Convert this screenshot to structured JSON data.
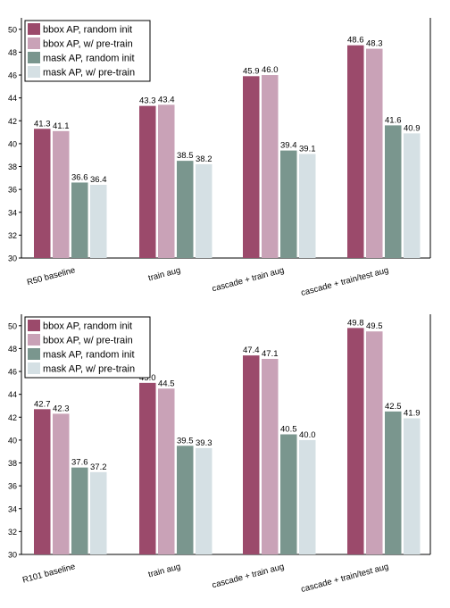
{
  "colors": {
    "bbox_random": "#9b4a6b",
    "bbox_pretrain": "#c9a2b7",
    "mask_random": "#7a968e",
    "mask_pretrain": "#d5e0e4"
  },
  "chart_data": [
    {
      "type": "bar",
      "categories": [
        "R50 baseline",
        "train aug",
        "cascade + train aug",
        "cascade + train/test aug"
      ],
      "ylim": [
        30,
        51
      ],
      "yticks": [
        30,
        32,
        34,
        36,
        38,
        40,
        42,
        44,
        46,
        48,
        50
      ],
      "legend_position": "top-left",
      "grid": false,
      "series": [
        {
          "name": "bbox AP, random init",
          "values": [
            41.3,
            43.3,
            45.9,
            48.6
          ]
        },
        {
          "name": "bbox AP, w/ pre-train",
          "values": [
            41.1,
            43.4,
            46.0,
            48.3
          ]
        },
        {
          "name": "mask AP, random init",
          "values": [
            36.6,
            38.5,
            39.4,
            41.6
          ]
        },
        {
          "name": "mask AP, w/ pre-train",
          "values": [
            36.4,
            38.2,
            39.1,
            40.9
          ]
        }
      ]
    },
    {
      "type": "bar",
      "categories": [
        "R101 baseline",
        "train aug",
        "cascade + train aug",
        "cascade + train/test aug"
      ],
      "ylim": [
        30,
        51
      ],
      "yticks": [
        30,
        32,
        34,
        36,
        38,
        40,
        42,
        44,
        46,
        48,
        50
      ],
      "legend_position": "top-left",
      "grid": false,
      "series": [
        {
          "name": "bbox AP, random init",
          "values": [
            42.7,
            45.0,
            47.4,
            49.8
          ]
        },
        {
          "name": "bbox AP, w/ pre-train",
          "values": [
            42.3,
            44.5,
            47.1,
            49.5
          ]
        },
        {
          "name": "mask AP, random init",
          "values": [
            37.6,
            39.5,
            40.5,
            42.5
          ]
        },
        {
          "name": "mask AP, w/ pre-train",
          "values": [
            37.2,
            39.3,
            40.0,
            41.9
          ]
        }
      ]
    }
  ]
}
